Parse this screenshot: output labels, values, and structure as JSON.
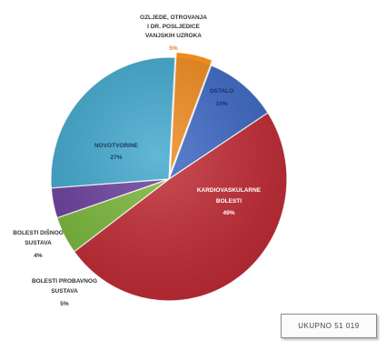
{
  "chart_data": {
    "type": "pie",
    "slices": [
      {
        "label": "OSTALO",
        "percent": "10%",
        "value": 10,
        "color": "#3b67c4"
      },
      {
        "label": "KARDIOVASKULARNE BOLESTI",
        "percent": "49%",
        "value": 49,
        "color": "#c22a33"
      },
      {
        "label": "BOLESTI PROBAVNOG SUSTAVA",
        "percent": "5%",
        "value": 5,
        "color": "#7ab83a"
      },
      {
        "label": "BOLESTI DIŠNOG SUSTAVA",
        "percent": "4%",
        "value": 4,
        "color": "#6a3f9e"
      },
      {
        "label": "NOVOTVORINE",
        "percent": "27%",
        "value": 27,
        "color": "#3fa7cd"
      },
      {
        "label": "OZLJEDE, OTROVANJA I DR. POSLJEDICE VANJSKIH UZROKA",
        "percent": "5%",
        "value": 5,
        "color": "#f08a1c"
      }
    ]
  },
  "total_label": "UKUPNO 51 019"
}
